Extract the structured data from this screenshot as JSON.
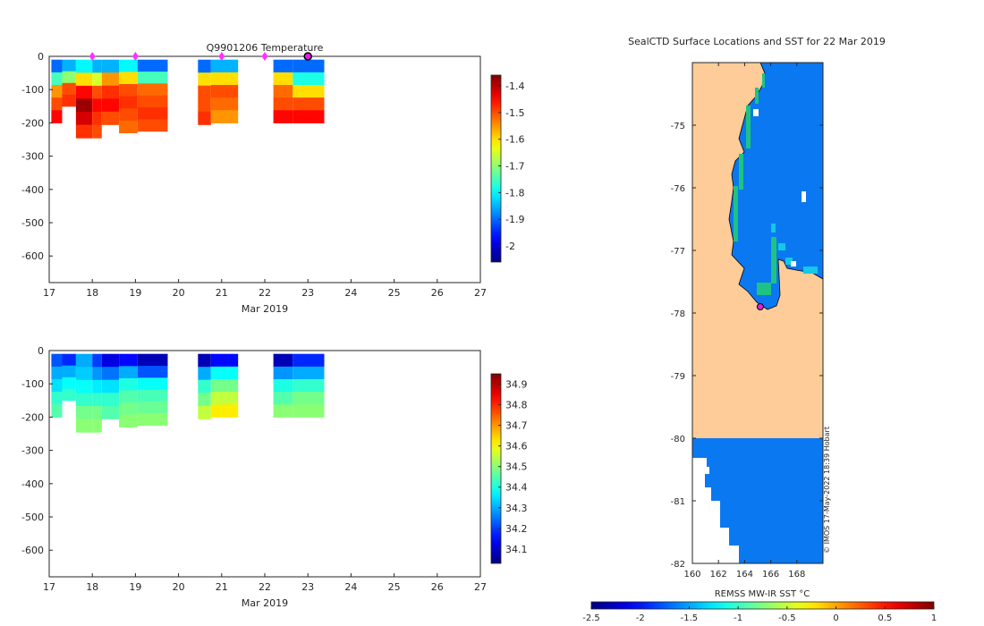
{
  "chart_data": [
    {
      "type": "heatmap",
      "title": "Q9901206  Temperature",
      "xlabel": "Mar 2019",
      "ylabel": "",
      "x_ticks": [
        "17",
        "18",
        "19",
        "20",
        "21",
        "22",
        "23",
        "24",
        "25",
        "26",
        "27"
      ],
      "y_ticks": [
        "0",
        "-100",
        "-200",
        "-300",
        "-400",
        "-500",
        "-600"
      ],
      "xlim": [
        17,
        27
      ],
      "ylim": [
        -680,
        0
      ],
      "colorbar": {
        "ticks": [
          "-1.4",
          "-1.5",
          "-1.6",
          "-1.7",
          "-1.8",
          "-1.9",
          "-2"
        ],
        "range": [
          -2.06,
          -1.36
        ]
      },
      "surface_markers_days": [
        18,
        19,
        21,
        22,
        23
      ],
      "current_marker_day": 23,
      "profiles": [
        {
          "x0": 17.05,
          "x1": 17.3,
          "bottom": 200,
          "values": [
            -1.9,
            -1.75,
            -1.55,
            -1.5,
            -1.45
          ]
        },
        {
          "x0": 17.3,
          "x1": 17.62,
          "bottom": 150,
          "values": [
            -1.85,
            -1.7,
            -1.5,
            -1.48
          ]
        },
        {
          "x0": 17.62,
          "x1": 18.0,
          "bottom": 245,
          "values": [
            -1.8,
            -1.6,
            -1.45,
            -1.38,
            -1.42,
            -1.48
          ]
        },
        {
          "x0": 18.0,
          "x1": 18.22,
          "bottom": 245,
          "values": [
            -1.85,
            -1.65,
            -1.5,
            -1.45,
            -1.48,
            -1.5
          ]
        },
        {
          "x0": 18.22,
          "x1": 18.62,
          "bottom": 205,
          "values": [
            -1.85,
            -1.55,
            -1.48,
            -1.45,
            -1.5
          ]
        },
        {
          "x0": 18.62,
          "x1": 19.05,
          "bottom": 230,
          "values": [
            -1.8,
            -1.6,
            -1.5,
            -1.48,
            -1.5,
            -1.52
          ]
        },
        {
          "x0": 19.05,
          "x1": 19.75,
          "bottom": 225,
          "values": [
            -1.9,
            -1.75,
            -1.52,
            -1.5,
            -1.48,
            -1.5
          ]
        },
        {
          "x0": 20.45,
          "x1": 20.75,
          "bottom": 205,
          "values": [
            -1.9,
            -1.6,
            -1.5,
            -1.5,
            -1.48
          ]
        },
        {
          "x0": 20.75,
          "x1": 21.38,
          "bottom": 200,
          "values": [
            -1.85,
            -1.6,
            -1.5,
            -1.52,
            -1.55
          ]
        },
        {
          "x0": 22.2,
          "x1": 22.65,
          "bottom": 200,
          "values": [
            -1.9,
            -1.6,
            -1.52,
            -1.5,
            -1.45
          ]
        },
        {
          "x0": 22.65,
          "x1": 23.38,
          "bottom": 200,
          "values": [
            -1.9,
            -1.78,
            -1.6,
            -1.5,
            -1.45
          ]
        }
      ]
    },
    {
      "type": "heatmap",
      "title": "",
      "xlabel": "Mar 2019",
      "ylabel": "",
      "x_ticks": [
        "17",
        "18",
        "19",
        "20",
        "21",
        "22",
        "23",
        "24",
        "25",
        "26",
        "27"
      ],
      "y_ticks": [
        "0",
        "-100",
        "-200",
        "-300",
        "-400",
        "-500",
        "-600"
      ],
      "xlim": [
        17,
        27
      ],
      "ylim": [
        -680,
        0
      ],
      "colorbar": {
        "ticks": [
          "34.9",
          "34.8",
          "34.7",
          "34.6",
          "34.5",
          "34.4",
          "34.3",
          "34.2",
          "34.1"
        ],
        "range": [
          34.03,
          34.95
        ]
      },
      "profiles": [
        {
          "x0": 17.05,
          "x1": 17.3,
          "bottom": 200,
          "values": [
            34.22,
            34.3,
            34.35,
            34.42,
            34.45
          ]
        },
        {
          "x0": 17.3,
          "x1": 17.62,
          "bottom": 150,
          "values": [
            34.18,
            34.3,
            34.38,
            34.42
          ]
        },
        {
          "x0": 17.62,
          "x1": 18.0,
          "bottom": 245,
          "values": [
            34.3,
            34.33,
            34.38,
            34.42,
            34.48,
            34.5
          ]
        },
        {
          "x0": 18.0,
          "x1": 18.22,
          "bottom": 245,
          "values": [
            34.2,
            34.28,
            34.36,
            34.42,
            34.48,
            34.5
          ]
        },
        {
          "x0": 18.22,
          "x1": 18.62,
          "bottom": 205,
          "values": [
            34.12,
            34.25,
            34.35,
            34.42,
            34.45
          ]
        },
        {
          "x0": 18.62,
          "x1": 19.05,
          "bottom": 230,
          "values": [
            34.15,
            34.3,
            34.4,
            34.45,
            34.48,
            34.5
          ]
        },
        {
          "x0": 19.05,
          "x1": 19.75,
          "bottom": 225,
          "values": [
            34.08,
            34.22,
            34.38,
            34.44,
            34.47,
            34.5
          ]
        },
        {
          "x0": 20.45,
          "x1": 20.75,
          "bottom": 205,
          "values": [
            34.08,
            34.3,
            34.42,
            34.48,
            34.55
          ]
        },
        {
          "x0": 20.75,
          "x1": 21.38,
          "bottom": 200,
          "values": [
            34.15,
            34.38,
            34.48,
            34.55,
            34.62
          ]
        },
        {
          "x0": 22.2,
          "x1": 22.65,
          "bottom": 200,
          "values": [
            34.08,
            34.28,
            34.4,
            34.45,
            34.5
          ]
        },
        {
          "x0": 22.65,
          "x1": 23.38,
          "bottom": 200,
          "values": [
            34.18,
            34.3,
            34.42,
            34.48,
            34.5
          ]
        }
      ]
    },
    {
      "type": "heatmap",
      "title": "SealCTD Surface Locations and SST for 22 Mar 2019",
      "xlabel": "",
      "ylabel": "",
      "x_ticks": [
        "160",
        "162",
        "164",
        "166",
        "168"
      ],
      "y_ticks": [
        "-75",
        "-76",
        "-77",
        "-78",
        "-79",
        "-80",
        "-81",
        "-82"
      ],
      "xlim": [
        160,
        170
      ],
      "ylim": [
        -82,
        -74
      ],
      "colorbar": {
        "label": "REMSS MW-IR SST °C",
        "ticks": [
          "-2.5",
          "-2",
          "-1.5",
          "-1",
          "-0.5",
          "0",
          "0.5",
          "1"
        ],
        "range": [
          -2.5,
          1
        ]
      },
      "sst_value_c": -1.75,
      "seal_location": {
        "lon": 165.2,
        "lat": -77.9
      },
      "credit": "© IMOS 17-May-2022 18:39 Hobart"
    }
  ]
}
